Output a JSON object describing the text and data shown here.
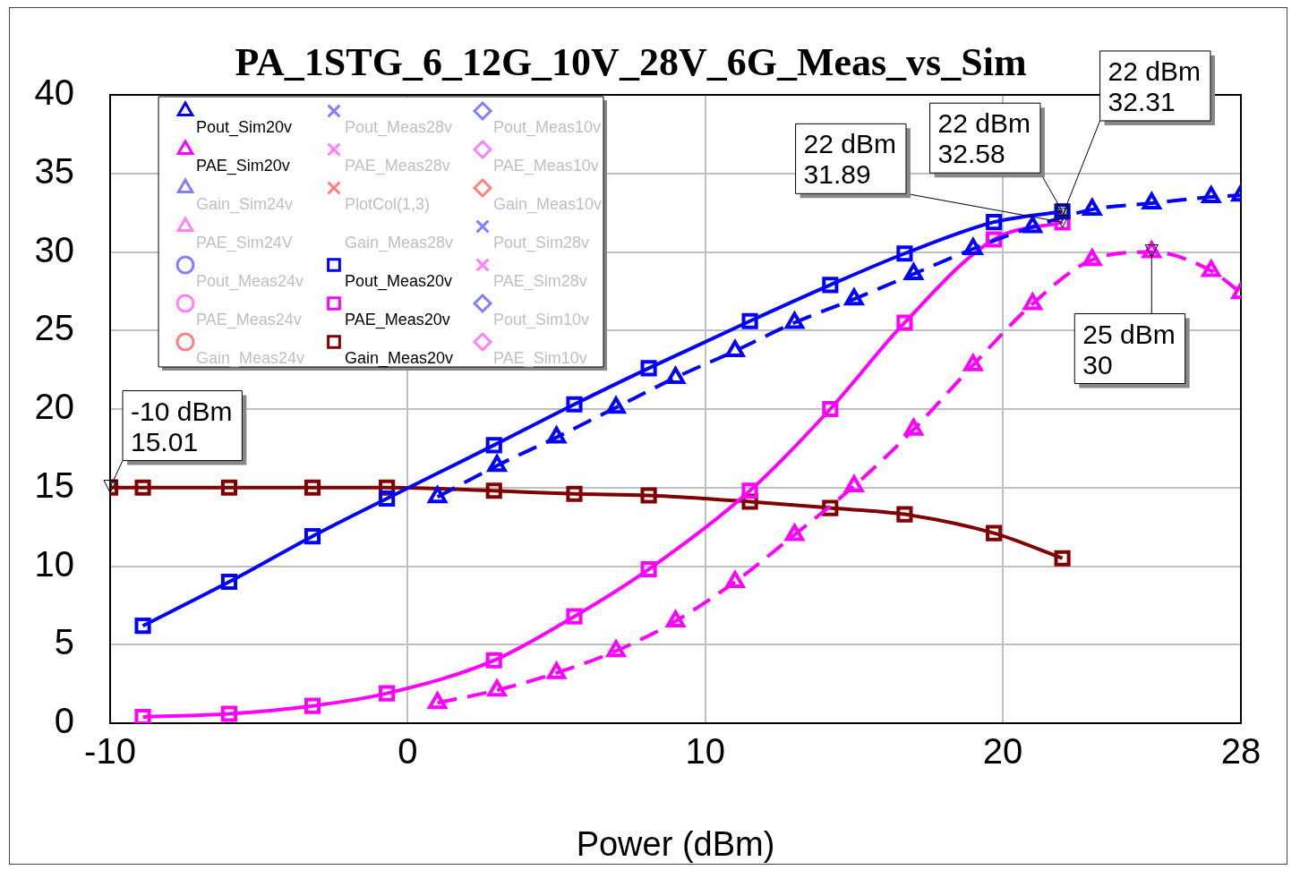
{
  "chart_data": {
    "type": "line",
    "title": "PA_1STG_6_12G_10V_28V_6G_Meas_vs_Sim",
    "xlabel": "Power (dBm)",
    "xlim": [
      -10,
      28
    ],
    "xticks": [
      -10,
      0,
      10,
      20,
      28
    ],
    "ylim": [
      0,
      40
    ],
    "yticks": [
      0,
      5,
      10,
      15,
      20,
      25,
      30,
      35,
      40
    ],
    "grid": true,
    "legend": "top left",
    "series": [
      {
        "name": "Pout_Sim20v",
        "color": "#0000ff",
        "marker": "triangle",
        "line_style": "dashed",
        "x": [
          1,
          3,
          5,
          7,
          9,
          11,
          13,
          15,
          17,
          19,
          21,
          23,
          25,
          27,
          28
        ],
        "values": [
          14.4,
          16.4,
          18.2,
          20.1,
          22.0,
          23.7,
          25.5,
          27.0,
          28.6,
          30.2,
          31.6,
          32.7,
          33.1,
          33.5,
          33.6
        ]
      },
      {
        "name": "PAE_Sim20v",
        "color": "#ff00ff",
        "marker": "triangle",
        "line_style": "dashed",
        "x": [
          1,
          3,
          5,
          7,
          9,
          11,
          13,
          15,
          17,
          19,
          21,
          23,
          25,
          27,
          28
        ],
        "values": [
          1.3,
          2.1,
          3.2,
          4.6,
          6.5,
          9.0,
          12.0,
          15.1,
          18.7,
          22.8,
          26.7,
          29.5,
          30.0,
          28.8,
          27.4
        ]
      },
      {
        "name": "Gain_Sim24v",
        "color": "#8080ff",
        "marker": "triangle"
      },
      {
        "name": "PAE_Sim24V",
        "color": "#ff80ff",
        "marker": "triangle"
      },
      {
        "name": "Pout_Meas24v",
        "color": "#8080ff",
        "marker": "circle"
      },
      {
        "name": "PAE_Meas24v",
        "color": "#ff80ff",
        "marker": "circle"
      },
      {
        "name": "Gain_Meas24v",
        "color": "#ff8080",
        "marker": "circle"
      },
      {
        "name": "Pout_Meas28v",
        "color": "#8080ff",
        "marker": "cross"
      },
      {
        "name": "PAE_Meas28v",
        "color": "#ff80ff",
        "marker": "cross"
      },
      {
        "name": "PlotCol(1,3)",
        "color": "#ff8080",
        "marker": "cross"
      },
      {
        "name": "Gain_Meas28v",
        "marker": "none"
      },
      {
        "name": "Pout_Meas20v",
        "color": "#0000ff",
        "marker": "square",
        "line_style": "solid",
        "x": [
          -8.9,
          -6,
          -3.2,
          -0.7,
          2.9,
          5.6,
          8.1,
          11.5,
          14.2,
          16.7,
          19.7,
          22
        ],
        "values": [
          6.2,
          9.0,
          11.9,
          14.3,
          17.7,
          20.3,
          22.6,
          25.6,
          27.9,
          29.9,
          31.9,
          32.58
        ]
      },
      {
        "name": "PAE_Meas20v",
        "color": "#ff00ff",
        "marker": "square",
        "line_style": "solid",
        "x": [
          -8.9,
          -6,
          -3.2,
          -0.7,
          2.9,
          5.6,
          8.1,
          11.5,
          14.2,
          16.7,
          19.7,
          22
        ],
        "values": [
          0.4,
          0.6,
          1.1,
          1.9,
          4.0,
          6.8,
          9.8,
          14.8,
          20.0,
          25.5,
          30.8,
          31.89
        ]
      },
      {
        "name": "Gain_Meas20v",
        "color": "#800000",
        "marker": "square",
        "line_style": "solid",
        "x": [
          -10,
          -8.9,
          -6,
          -3.2,
          -0.7,
          2.9,
          5.6,
          8.1,
          11.5,
          14.2,
          16.7,
          19.7,
          22
        ],
        "values": [
          15.01,
          15.0,
          15.0,
          15.0,
          15.0,
          14.8,
          14.6,
          14.5,
          14.1,
          13.7,
          13.3,
          12.1,
          10.5
        ]
      },
      {
        "name": "Pout_Meas10v",
        "color": "#8080ff",
        "marker": "diamond"
      },
      {
        "name": "PAE_Meas10v",
        "color": "#ff80ff",
        "marker": "diamond"
      },
      {
        "name": "Gain_Meas10v",
        "color": "#ff8080",
        "marker": "diamond"
      },
      {
        "name": "Pout_Sim28v",
        "color": "#8080ff",
        "marker": "cross"
      },
      {
        "name": "PAE_Sim28v",
        "color": "#ff80ff",
        "marker": "cross"
      },
      {
        "name": "Pout_Sim10v",
        "color": "#8080ff",
        "marker": "diamond"
      },
      {
        "name": "PAE_Sim10v",
        "color": "#ff80ff",
        "marker": "diamond"
      }
    ],
    "annotations": [
      {
        "text": "-10 dBm\n15.01",
        "x": -10,
        "y": 15.01
      },
      {
        "text": "22 dBm\n31.89",
        "x": 22,
        "y": 31.89
      },
      {
        "text": "22 dBm\n32.58",
        "x": 22,
        "y": 32.58
      },
      {
        "text": "22 dBm\n32.31",
        "x": 22,
        "y": 32.31
      },
      {
        "text": "25 dBm\n30",
        "x": 25,
        "y": 30
      }
    ]
  }
}
